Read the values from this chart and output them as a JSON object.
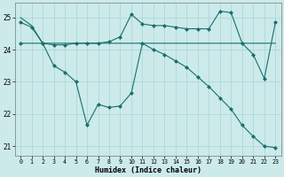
{
  "xlabel": "Humidex (Indice chaleur)",
  "bg_color": "#cceaea",
  "grid_color": "#aad4d4",
  "line_color": "#1a6e6e",
  "xlim": [
    -0.5,
    23.5
  ],
  "ylim": [
    20.7,
    25.45
  ],
  "yticks": [
    21,
    22,
    23,
    24,
    25
  ],
  "xticks": [
    0,
    1,
    2,
    3,
    4,
    5,
    6,
    7,
    8,
    9,
    10,
    11,
    12,
    13,
    14,
    15,
    16,
    17,
    18,
    19,
    20,
    21,
    22,
    23
  ],
  "line1_x": [
    0,
    1,
    2,
    3,
    4,
    5,
    6,
    7,
    8,
    9,
    10,
    11,
    12,
    13,
    14,
    15,
    16,
    17,
    18,
    19,
    20,
    21,
    22,
    23
  ],
  "line1_y": [
    25.0,
    24.75,
    24.2,
    24.2,
    24.2,
    24.2,
    24.2,
    24.2,
    24.2,
    24.2,
    24.2,
    24.2,
    24.2,
    24.2,
    24.2,
    24.2,
    24.2,
    24.2,
    24.2,
    24.2,
    24.2,
    24.2,
    24.2,
    24.2
  ],
  "line2_x": [
    0,
    1,
    2,
    3,
    4,
    5,
    6,
    7,
    8,
    9,
    10,
    11,
    12,
    13,
    14,
    15,
    16,
    17,
    18,
    19,
    20,
    21,
    22,
    23
  ],
  "line2_y": [
    24.85,
    24.7,
    24.2,
    24.15,
    24.15,
    24.2,
    24.2,
    24.2,
    24.25,
    24.4,
    25.1,
    24.8,
    24.75,
    24.75,
    24.7,
    24.65,
    24.65,
    24.65,
    25.2,
    25.15,
    24.2,
    23.85,
    23.1,
    24.85
  ],
  "line3_x": [
    0,
    2,
    3,
    4,
    5,
    6,
    7,
    8,
    9,
    10,
    11,
    12,
    13,
    14,
    15,
    16,
    17,
    18,
    19,
    20,
    21,
    22,
    23
  ],
  "line3_y": [
    24.2,
    24.2,
    23.5,
    23.3,
    23.0,
    21.65,
    22.3,
    22.2,
    22.25,
    22.65,
    24.2,
    24.0,
    23.85,
    23.65,
    23.45,
    23.15,
    22.85,
    22.5,
    22.15,
    21.65,
    21.3,
    21.0,
    20.95
  ]
}
